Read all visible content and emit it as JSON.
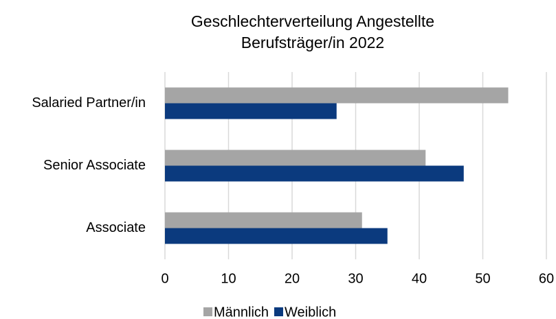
{
  "chart_data": {
    "type": "hbar",
    "title": [
      "Geschlechterverteilung  Angestellte",
      "Berufsträger/in 2022"
    ],
    "categories": [
      "Salaried Partner/in",
      "Senior Associate",
      "Associate"
    ],
    "series": [
      {
        "name": "Männlich",
        "color": "#a5a5a5",
        "values": [
          54,
          41,
          31
        ]
      },
      {
        "name": "Weiblich",
        "color": "#0b3a7e",
        "values": [
          27,
          47,
          35
        ]
      }
    ],
    "xlim": [
      0,
      60
    ],
    "xticks": [
      0,
      10,
      20,
      30,
      40,
      50,
      60
    ],
    "grid": true,
    "legend": "bottom"
  }
}
